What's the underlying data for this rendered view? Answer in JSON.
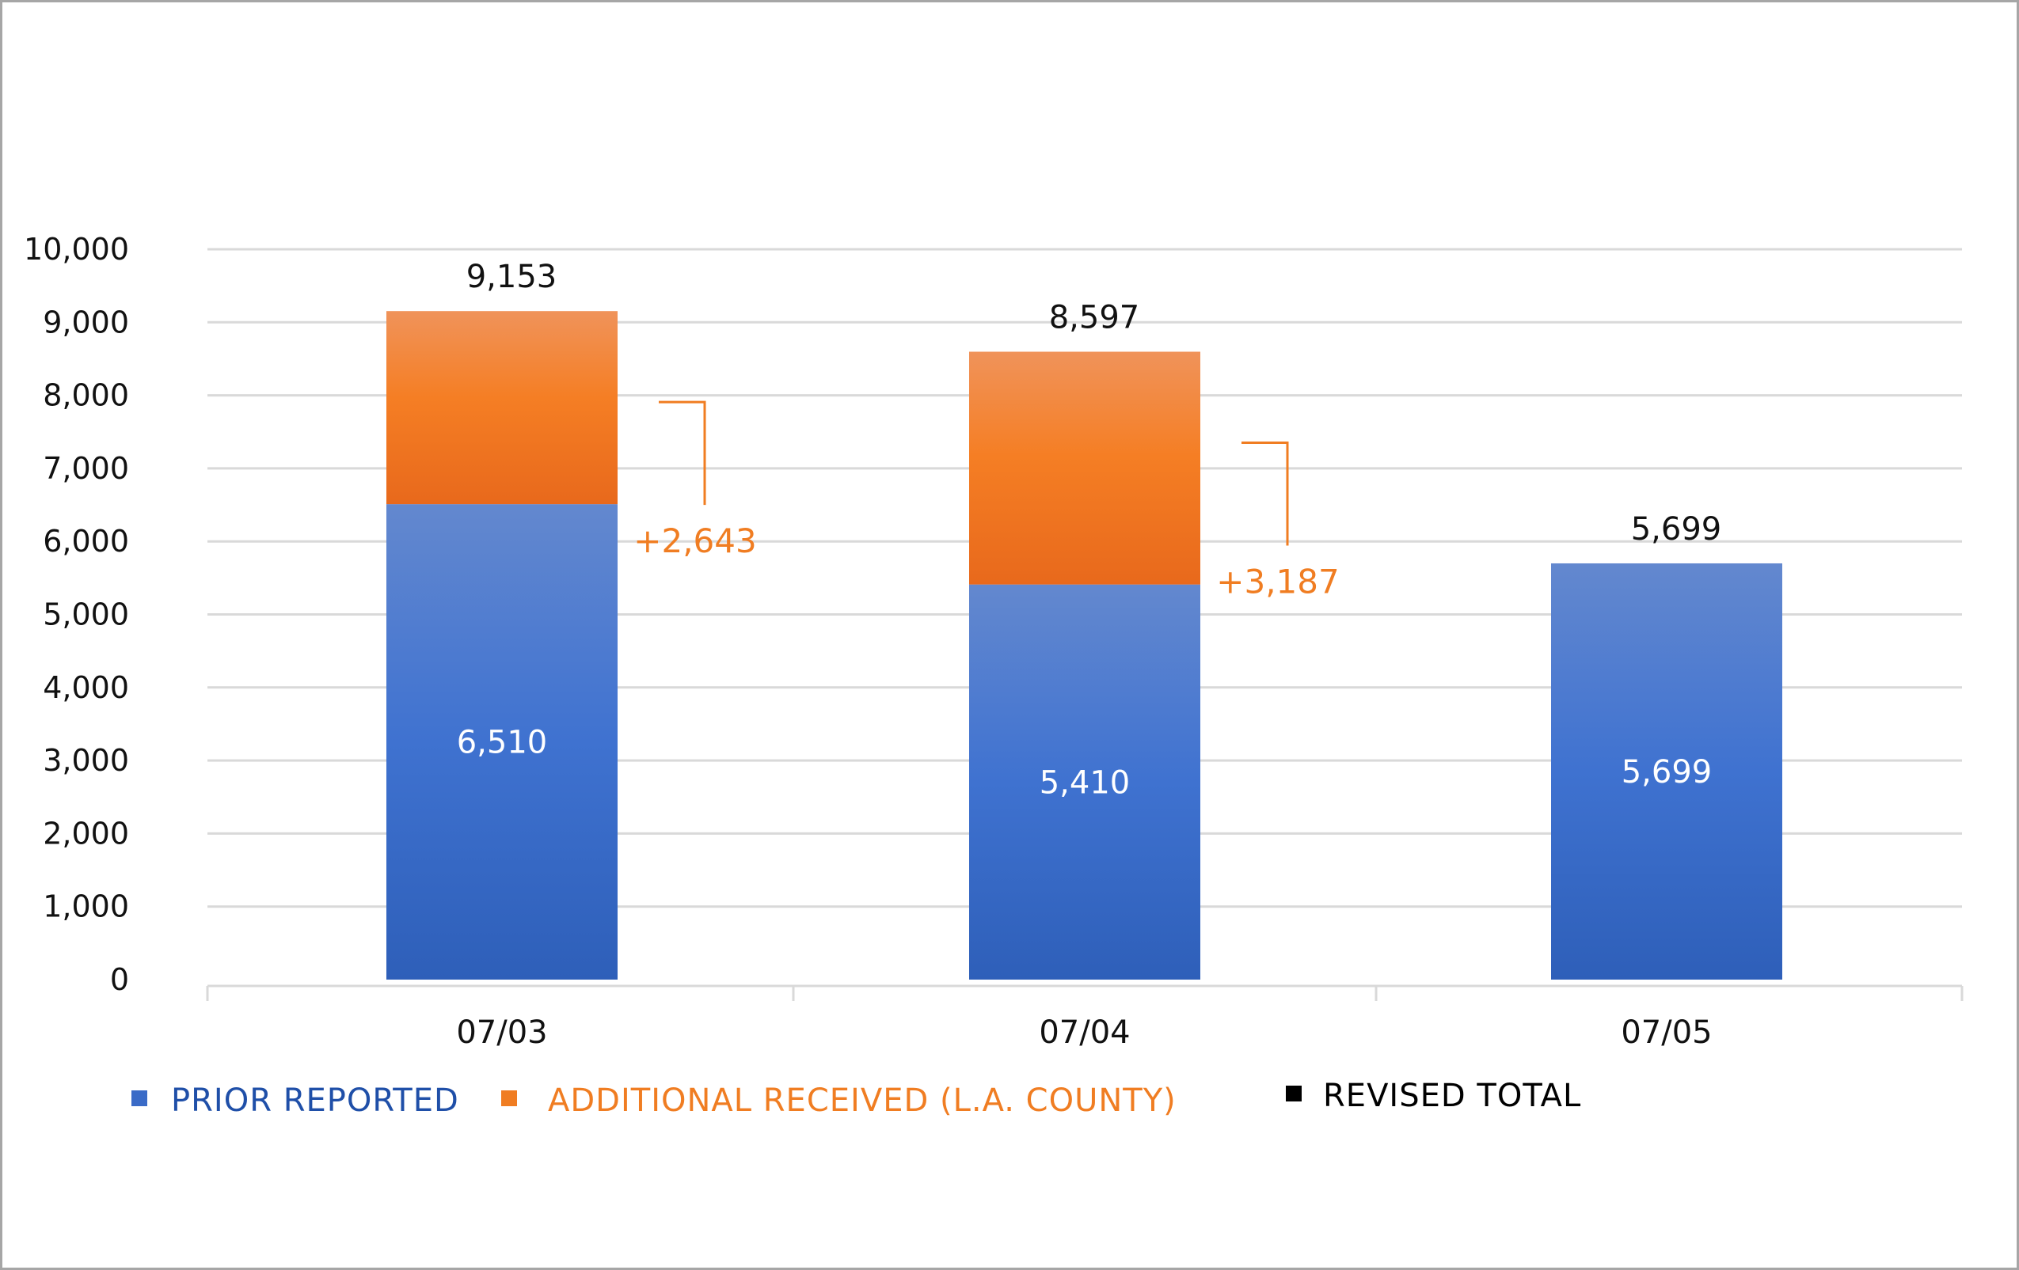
{
  "chart_data": {
    "type": "bar",
    "stacked": true,
    "title": "",
    "xlabel": "",
    "ylabel": "",
    "ylim": [
      0,
      10000
    ],
    "yticks": [
      0,
      1000,
      2000,
      3000,
      4000,
      5000,
      6000,
      7000,
      8000,
      9000,
      10000
    ],
    "ytick_labels": [
      "0",
      "1,000",
      "2,000",
      "3,000",
      "4,000",
      "5,000",
      "6,000",
      "7,000",
      "8,000",
      "9,000",
      "10,000"
    ],
    "grid": true,
    "categories": [
      "07/03",
      "07/04",
      "07/05"
    ],
    "series": [
      {
        "name": "PRIOR REPORTED",
        "color": "#3a6bc7",
        "values": [
          6510,
          5410,
          5699
        ],
        "labels": [
          "6,510",
          "5,410",
          "5,699"
        ]
      },
      {
        "name": "ADDITIONAL RECEIVED (L.A. COUNTY)",
        "color": "#f07d22",
        "values": [
          2643,
          3187,
          0
        ],
        "labels": [
          "+2,643",
          "+3,187",
          ""
        ]
      }
    ],
    "totals": {
      "name": "REVISED TOTAL",
      "color": "#000000",
      "values": [
        9153,
        8597,
        5699
      ],
      "labels": [
        "9,153",
        "8,597",
        "5,699"
      ]
    },
    "legend_position": "bottom-left",
    "colors": {
      "prior_text": "#1f4fa8",
      "additional_text": "#f07d22",
      "grid": "#d9d9d9"
    }
  }
}
